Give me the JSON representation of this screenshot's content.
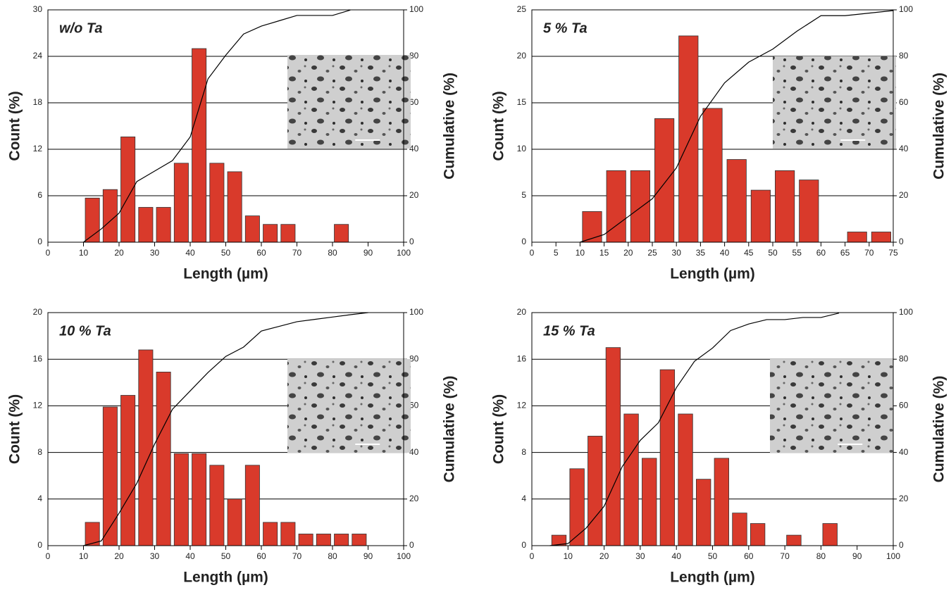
{
  "chart_data": [
    {
      "type": "histogram",
      "annotation": "w/o Ta",
      "xlabel": "Length (µm)",
      "ylabel": "Count (%)",
      "y2label": "Cumulative (%)",
      "bins": [
        10,
        15,
        20,
        25,
        30,
        35,
        40,
        45,
        50,
        55,
        60,
        65,
        70,
        75,
        80,
        85
      ],
      "values": [
        5.7,
        6.8,
        13.6,
        4.5,
        4.5,
        10.2,
        25,
        10.2,
        9.1,
        3.4,
        2.3,
        2.3,
        0,
        0,
        2.3
      ],
      "color": "#d93a2b",
      "cumulative": {
        "x": [
          10,
          15,
          20,
          25,
          30,
          35,
          40,
          45,
          50,
          55,
          60,
          65,
          70,
          75,
          80,
          85
        ],
        "values": [
          0,
          5.7,
          12.5,
          26.1,
          30.6,
          35.1,
          45.3,
          70.3,
          80.5,
          89.6,
          93,
          95.3,
          97.6,
          97.6,
          97.6,
          99.9
        ],
        "axis": "y2",
        "color": "#000000"
      },
      "xlim": [
        0,
        100
      ],
      "xticks": [
        0,
        10,
        20,
        30,
        40,
        50,
        60,
        70,
        80,
        90,
        100
      ],
      "ylim": [
        0,
        30
      ],
      "yticks": [
        0,
        6,
        12,
        18,
        24,
        30
      ],
      "y2lim": [
        0,
        100
      ],
      "y2ticks": [
        0,
        20,
        40,
        60,
        80,
        100
      ],
      "grid": true
    },
    {
      "type": "histogram",
      "annotation": "5 % Ta",
      "xlabel": "Length (µm)",
      "ylabel": "Count (%)",
      "y2label": "Cumulative (%)",
      "bins": [
        10,
        15,
        20,
        25,
        30,
        35,
        40,
        45,
        50,
        55,
        60,
        65,
        70,
        75
      ],
      "values": [
        3.3,
        7.7,
        7.7,
        13.3,
        22.2,
        14.4,
        8.9,
        5.6,
        7.7,
        6.7,
        0,
        1.1,
        1.1
      ],
      "color": "#d93a2b",
      "cumulative": {
        "x": [
          10,
          15,
          20,
          25,
          30,
          35,
          40,
          45,
          50,
          55,
          60,
          65,
          70,
          75
        ],
        "values": [
          0,
          3.3,
          11,
          18.7,
          32,
          54.2,
          68.6,
          77.5,
          83.1,
          90.8,
          97.5,
          97.5,
          98.6,
          99.7
        ],
        "axis": "y2",
        "color": "#000000"
      },
      "xlim": [
        0,
        75
      ],
      "xticks": [
        0,
        5,
        10,
        15,
        20,
        25,
        30,
        35,
        40,
        45,
        50,
        55,
        60,
        65,
        70,
        75
      ],
      "ylim": [
        0,
        25
      ],
      "yticks": [
        0,
        5,
        10,
        15,
        20,
        25
      ],
      "y2lim": [
        0,
        100
      ],
      "y2ticks": [
        0,
        20,
        40,
        60,
        80,
        100
      ],
      "grid": true
    },
    {
      "type": "histogram",
      "annotation": "10 % Ta",
      "xlabel": "Length (µm)",
      "ylabel": "Count (%)",
      "y2label": "Cumulative (%)",
      "bins": [
        10,
        15,
        20,
        25,
        30,
        35,
        40,
        45,
        50,
        55,
        60,
        65,
        70,
        75,
        80,
        85,
        90
      ],
      "values": [
        2,
        11.9,
        12.9,
        16.8,
        14.9,
        7.9,
        7.9,
        6.9,
        4,
        6.9,
        2,
        2,
        1,
        1,
        1,
        1
      ],
      "color": "#d93a2b",
      "cumulative": {
        "x": [
          10,
          15,
          20,
          25,
          30,
          35,
          40,
          45,
          50,
          55,
          60,
          65,
          70,
          75,
          80,
          85,
          90
        ],
        "values": [
          0,
          2,
          13.9,
          26.8,
          43.6,
          58.5,
          66.4,
          74.3,
          81.2,
          85.2,
          92.1,
          94.1,
          96.1,
          97.1,
          98.1,
          99.1,
          100
        ],
        "axis": "y2",
        "color": "#000000"
      },
      "xlim": [
        0,
        100
      ],
      "xticks": [
        0,
        10,
        20,
        30,
        40,
        50,
        60,
        70,
        80,
        90,
        100
      ],
      "ylim": [
        0,
        20
      ],
      "yticks": [
        0,
        4,
        8,
        12,
        16,
        20
      ],
      "y2lim": [
        0,
        100
      ],
      "y2ticks": [
        0,
        20,
        40,
        60,
        80,
        100
      ],
      "grid": true
    },
    {
      "type": "histogram",
      "annotation": "15 % Ta",
      "xlabel": "Length (µm)",
      "ylabel": "Count (%)",
      "y2label": "Cumulative (%)",
      "bins": [
        5,
        10,
        15,
        20,
        25,
        30,
        35,
        40,
        45,
        50,
        55,
        60,
        65,
        70,
        75,
        80,
        85
      ],
      "values": [
        0.9,
        6.6,
        9.4,
        17,
        11.3,
        7.5,
        15.1,
        11.3,
        5.7,
        7.5,
        2.8,
        1.9,
        0,
        0.9,
        0,
        1.9
      ],
      "color": "#d93a2b",
      "cumulative": {
        "x": [
          5,
          10,
          15,
          20,
          25,
          30,
          35,
          40,
          45,
          50,
          55,
          60,
          65,
          70,
          75,
          80,
          85
        ],
        "values": [
          0,
          0.9,
          7.5,
          16.9,
          33.9,
          45.2,
          52.7,
          67.8,
          79.1,
          84.8,
          92.3,
          95.1,
          97,
          97,
          97.9,
          97.9,
          99.8
        ],
        "axis": "y2",
        "color": "#000000"
      },
      "xlim": [
        0,
        100
      ],
      "xticks": [
        0,
        10,
        20,
        30,
        40,
        50,
        60,
        70,
        80,
        90,
        100
      ],
      "ylim": [
        0,
        20
      ],
      "yticks": [
        0,
        4,
        8,
        12,
        16,
        20
      ],
      "y2lim": [
        0,
        100
      ],
      "y2ticks": [
        0,
        20,
        40,
        60,
        80,
        100
      ],
      "grid": true
    }
  ]
}
